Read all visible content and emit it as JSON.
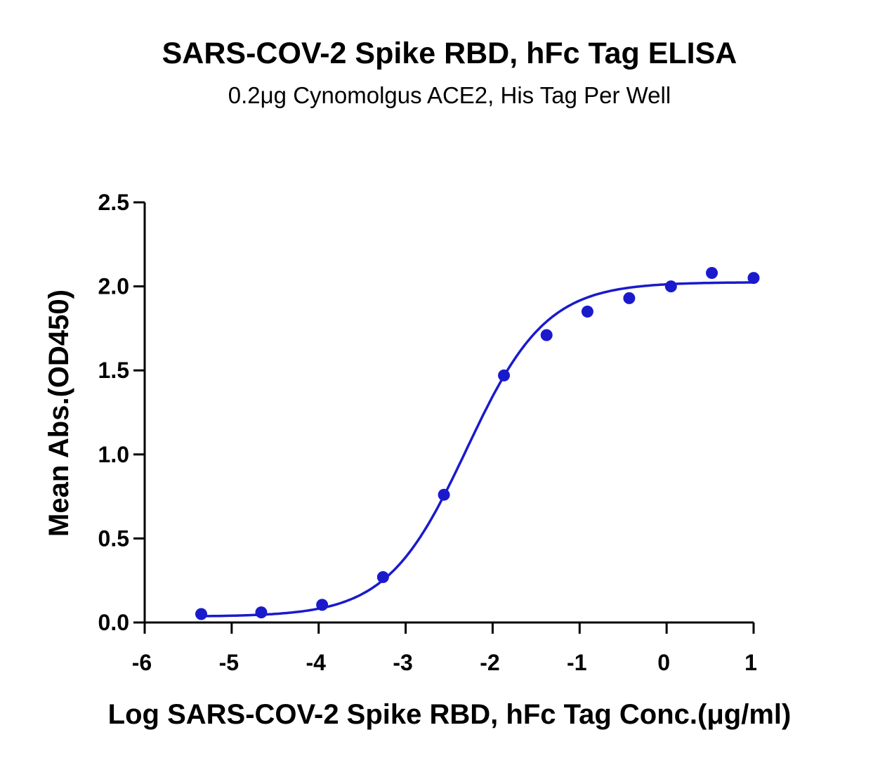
{
  "chart_data": {
    "type": "scatter",
    "title": "SARS-COV-2 Spike RBD, hFc Tag ELISA",
    "subtitle": "0.2μg Cynomolgus ACE2, His Tag Per Well",
    "xlabel": "Log SARS-COV-2 Spike RBD, hFc Tag Conc.(μg/ml)",
    "ylabel": "Mean Abs.(OD450)",
    "xlim": [
      -6,
      1
    ],
    "ylim": [
      0,
      2.5
    ],
    "xticks": [
      "-6",
      "-5",
      "-4",
      "-3",
      "-2",
      "-1",
      "0",
      "1"
    ],
    "yticks": [
      "0.0",
      "0.5",
      "1.0",
      "1.5",
      "2.0",
      "2.5"
    ],
    "grid": false,
    "color": "#1a1acc",
    "series": [
      {
        "name": "Mean Abs.",
        "x": [
          -5.35,
          -4.66,
          -3.96,
          -3.26,
          -2.56,
          -1.87,
          -1.38,
          -0.91,
          -0.43,
          0.05,
          0.52,
          1.0
        ],
        "y": [
          0.05,
          0.06,
          0.105,
          0.27,
          0.76,
          1.47,
          1.71,
          1.85,
          1.93,
          2.0,
          2.08,
          2.05
        ]
      }
    ],
    "fit": {
      "model": "4PL",
      "bottom": 0.035,
      "top": 2.025,
      "logEC50": -2.3,
      "hill": 0.95,
      "xrange": [
        -5.35,
        1.0
      ]
    }
  }
}
